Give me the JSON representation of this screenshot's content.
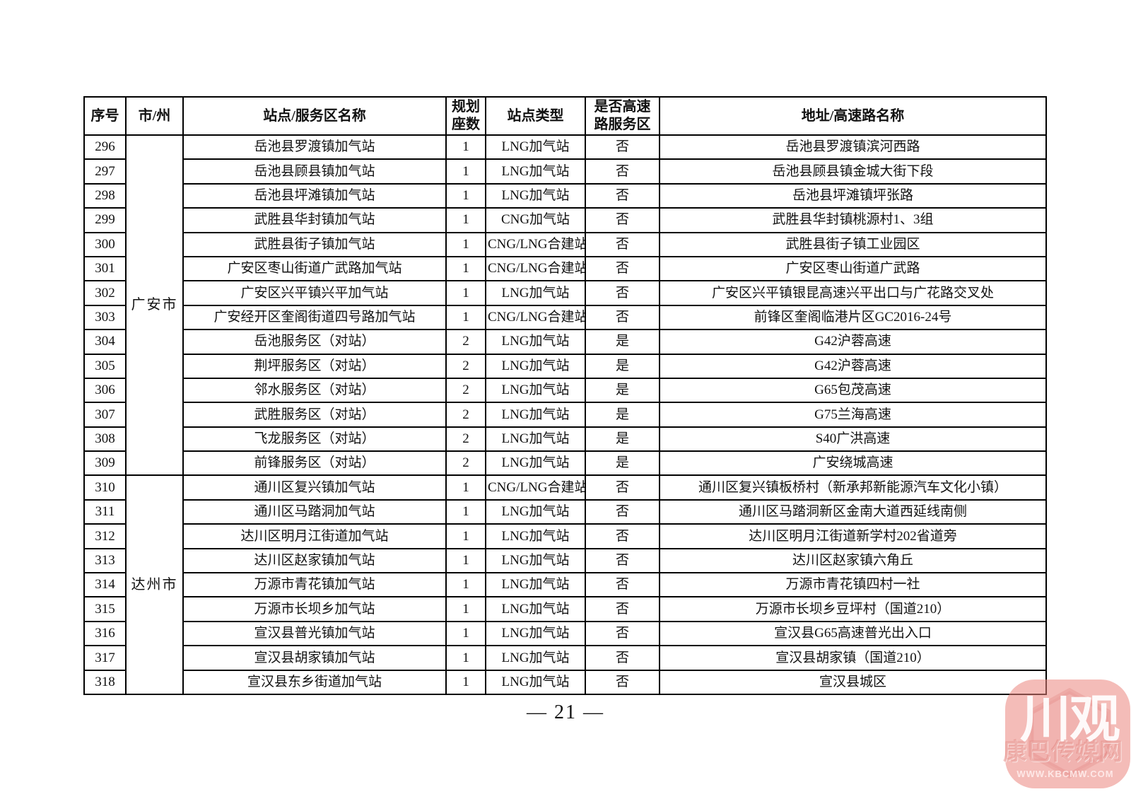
{
  "table": {
    "headers": [
      "序号",
      "市/州",
      "站点/服务区名称",
      "规划\n座数",
      "站点类型",
      "是否高速\n路服务区",
      "地址/高速路名称"
    ],
    "city_groups": [
      {
        "label": "广安市",
        "row_span": 14
      },
      {
        "label": "达州市",
        "row_span": 9
      }
    ],
    "rows": [
      {
        "no": "296",
        "name": "岳池县罗渡镇加气站",
        "seats": "1",
        "type": "LNG加气站",
        "is_highway": "否",
        "address": "岳池县罗渡镇滨河西路"
      },
      {
        "no": "297",
        "name": "岳池县顾县镇加气站",
        "seats": "1",
        "type": "LNG加气站",
        "is_highway": "否",
        "address": "岳池县顾县镇金城大街下段"
      },
      {
        "no": "298",
        "name": "岳池县坪滩镇加气站",
        "seats": "1",
        "type": "LNG加气站",
        "is_highway": "否",
        "address": "岳池县坪滩镇坪张路"
      },
      {
        "no": "299",
        "name": "武胜县华封镇加气站",
        "seats": "1",
        "type": "CNG加气站",
        "is_highway": "否",
        "address": "武胜县华封镇桃源村1、3组"
      },
      {
        "no": "300",
        "name": "武胜县街子镇加气站",
        "seats": "1",
        "type": "CNG/LNG合建站",
        "is_highway": "否",
        "address": "武胜县街子镇工业园区"
      },
      {
        "no": "301",
        "name": "广安区枣山街道广武路加气站",
        "seats": "1",
        "type": "CNG/LNG合建站",
        "is_highway": "否",
        "address": "广安区枣山街道广武路"
      },
      {
        "no": "302",
        "name": "广安区兴平镇兴平加气站",
        "seats": "1",
        "type": "LNG加气站",
        "is_highway": "否",
        "address": "广安区兴平镇银昆高速兴平出口与广花路交叉处"
      },
      {
        "no": "303",
        "name": "广安经开区奎阁街道四号路加气站",
        "seats": "1",
        "type": "CNG/LNG合建站",
        "is_highway": "否",
        "address": "前锋区奎阁临港片区GC2016-24号"
      },
      {
        "no": "304",
        "name": "岳池服务区（对站）",
        "seats": "2",
        "type": "LNG加气站",
        "is_highway": "是",
        "address": "G42沪蓉高速"
      },
      {
        "no": "305",
        "name": "荆坪服务区（对站）",
        "seats": "2",
        "type": "LNG加气站",
        "is_highway": "是",
        "address": "G42沪蓉高速"
      },
      {
        "no": "306",
        "name": "邻水服务区（对站）",
        "seats": "2",
        "type": "LNG加气站",
        "is_highway": "是",
        "address": "G65包茂高速"
      },
      {
        "no": "307",
        "name": "武胜服务区（对站）",
        "seats": "2",
        "type": "LNG加气站",
        "is_highway": "是",
        "address": "G75兰海高速"
      },
      {
        "no": "308",
        "name": "飞龙服务区（对站）",
        "seats": "2",
        "type": "LNG加气站",
        "is_highway": "是",
        "address": "S40广洪高速"
      },
      {
        "no": "309",
        "name": "前锋服务区（对站）",
        "seats": "2",
        "type": "LNG加气站",
        "is_highway": "是",
        "address": "广安绕城高速"
      },
      {
        "no": "310",
        "name": "通川区复兴镇加气站",
        "seats": "1",
        "type": "CNG/LNG合建站",
        "is_highway": "否",
        "address": "通川区复兴镇板桥村（新承邦新能源汽车文化小镇）"
      },
      {
        "no": "311",
        "name": "通川区马踏洞加气站",
        "seats": "1",
        "type": "LNG加气站",
        "is_highway": "否",
        "address": "通川区马踏洞新区金南大道西延线南侧"
      },
      {
        "no": "312",
        "name": "达川区明月江街道加气站",
        "seats": "1",
        "type": "LNG加气站",
        "is_highway": "否",
        "address": "达川区明月江街道新学村202省道旁"
      },
      {
        "no": "313",
        "name": "达川区赵家镇加气站",
        "seats": "1",
        "type": "LNG加气站",
        "is_highway": "否",
        "address": "达川区赵家镇六角丘"
      },
      {
        "no": "314",
        "name": "万源市青花镇加气站",
        "seats": "1",
        "type": "LNG加气站",
        "is_highway": "否",
        "address": "万源市青花镇四村一社"
      },
      {
        "no": "315",
        "name": "万源市长坝乡加气站",
        "seats": "1",
        "type": "LNG加气站",
        "is_highway": "否",
        "address": "万源市长坝乡豆坪村（国道210）"
      },
      {
        "no": "316",
        "name": "宣汉县普光镇加气站",
        "seats": "1",
        "type": "LNG加气站",
        "is_highway": "否",
        "address": "宣汉县G65高速普光出入口"
      },
      {
        "no": "317",
        "name": "宣汉县胡家镇加气站",
        "seats": "1",
        "type": "LNG加气站",
        "is_highway": "否",
        "address": "宣汉县胡家镇（国道210）"
      },
      {
        "no": "318",
        "name": "宣汉县东乡街道加气站",
        "seats": "1",
        "type": "LNG加气站",
        "is_highway": "否",
        "address": "宣汉县城区"
      }
    ]
  },
  "footer": {
    "page_number": "— 21 —"
  },
  "watermark": {
    "main_text": "川观",
    "sub_text": "康巴传媒网",
    "url_text": "WWW.KBCMW.COM",
    "square_color": "#f4bcb8"
  }
}
